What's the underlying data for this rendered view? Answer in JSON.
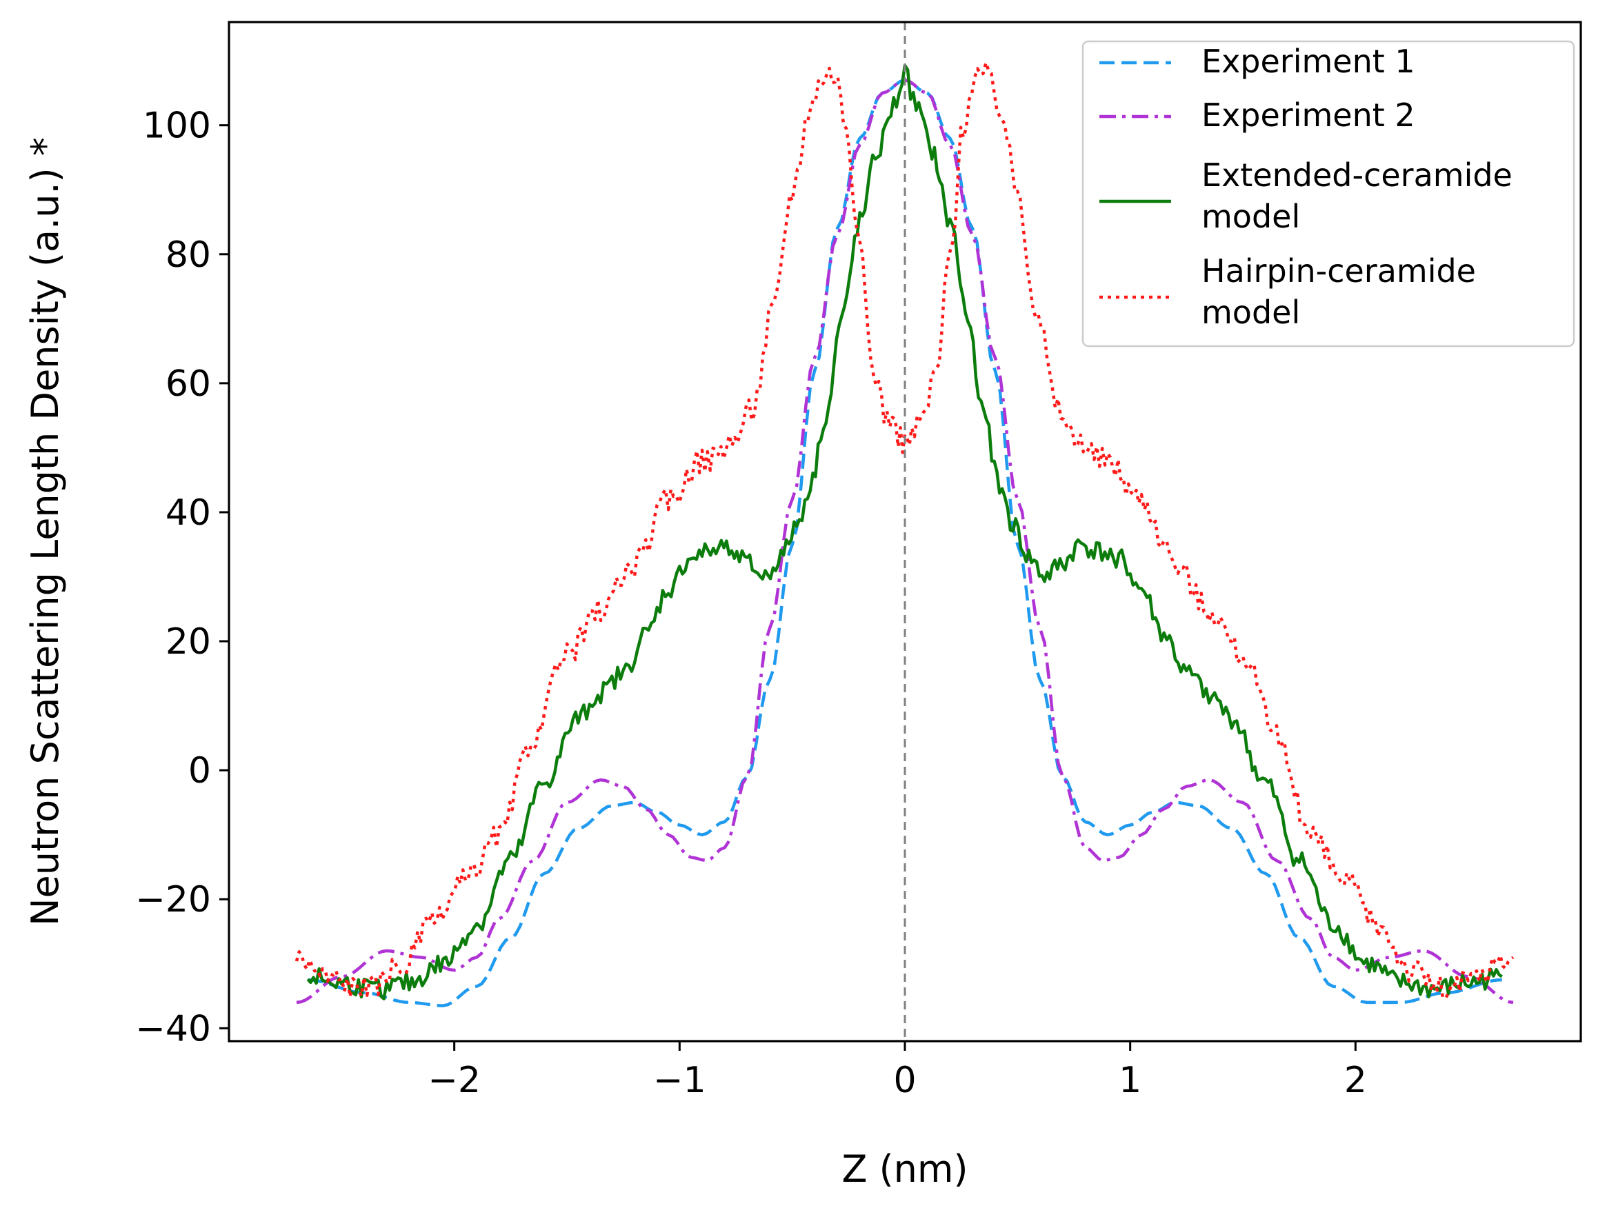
{
  "chart_data": {
    "type": "line",
    "title": "",
    "xlabel": "Z (nm)",
    "ylabel": "Neutron Scattering Length Density (a.u.) *",
    "xlim": [
      -3.0,
      3.0
    ],
    "ylim": [
      -42,
      116
    ],
    "x_ticks": [
      -2,
      -1,
      0,
      1,
      2
    ],
    "x_tick_labels": [
      "−2",
      "−1",
      "0",
      "1",
      "2"
    ],
    "y_ticks": [
      -40,
      -20,
      0,
      20,
      40,
      60,
      80,
      100
    ],
    "y_tick_labels": [
      "−40",
      "−20",
      "0",
      "20",
      "40",
      "60",
      "80",
      "100"
    ],
    "grid": false,
    "reference_line": {
      "x": 0,
      "style": "dashed",
      "color": "#808080"
    },
    "legend": {
      "placement": "top-right",
      "entries": [
        {
          "label_lines": [
            "Experiment 1"
          ]
        },
        {
          "label_lines": [
            "Experiment 2"
          ]
        },
        {
          "label_lines": [
            "Extended-ceramide",
            "model"
          ]
        },
        {
          "label_lines": [
            "Hairpin-ceramide",
            "model"
          ]
        }
      ]
    },
    "series": [
      {
        "name": "Experiment 1",
        "color": "#1f9aef",
        "style": "dashed",
        "x": [
          -2.65,
          -2.4,
          -2.2,
          -2.05,
          -1.9,
          -1.75,
          -1.6,
          -1.45,
          -1.3,
          -1.2,
          -1.1,
          -1.0,
          -0.9,
          -0.8,
          -0.7,
          -0.6,
          -0.5,
          -0.4,
          -0.3,
          -0.2,
          -0.1,
          0.0,
          0.1,
          0.2,
          0.3,
          0.4,
          0.5,
          0.6,
          0.7,
          0.8,
          0.9,
          1.0,
          1.1,
          1.2,
          1.3,
          1.45,
          1.6,
          1.75,
          1.9,
          2.05,
          2.2,
          2.4,
          2.65
        ],
        "values": [
          -32.5,
          -34.5,
          -36,
          -36.5,
          -33.5,
          -26,
          -16,
          -9,
          -5.5,
          -5,
          -6.5,
          -8.5,
          -10,
          -8,
          -1,
          14,
          35,
          62,
          84,
          98,
          105,
          107,
          105,
          98,
          84,
          62,
          35,
          14,
          -1,
          -8,
          -10,
          -8.5,
          -6.5,
          -5,
          -5.5,
          -9,
          -16,
          -26,
          -33.5,
          -36,
          -36,
          -34.5,
          -32.5
        ]
      },
      {
        "name": "Experiment 2",
        "color": "#b033d6",
        "style": "dashdot",
        "x": [
          -2.7,
          -2.5,
          -2.3,
          -2.15,
          -2.0,
          -1.9,
          -1.8,
          -1.65,
          -1.5,
          -1.35,
          -1.25,
          -1.15,
          -1.05,
          -0.95,
          -0.88,
          -0.8,
          -0.7,
          -0.6,
          -0.5,
          -0.4,
          -0.3,
          -0.2,
          -0.1,
          0.0,
          0.1,
          0.2,
          0.3,
          0.4,
          0.5,
          0.6,
          0.7,
          0.8,
          0.88,
          0.95,
          1.05,
          1.15,
          1.25,
          1.35,
          1.5,
          1.65,
          1.8,
          1.9,
          2.0,
          2.15,
          2.3,
          2.5,
          2.7
        ],
        "values": [
          -36,
          -32,
          -28,
          -29,
          -31,
          -29,
          -23,
          -14,
          -5,
          -1.5,
          -2.5,
          -6,
          -10,
          -13.5,
          -14,
          -12,
          -1,
          22,
          42,
          64,
          83,
          97,
          105,
          107,
          105,
          97,
          83,
          64,
          42,
          22,
          -1,
          -12,
          -14,
          -13.5,
          -10,
          -6,
          -2.5,
          -1.5,
          -5,
          -14,
          -23,
          -29,
          -31,
          -29,
          -28,
          -32,
          -36
        ]
      },
      {
        "name": "Extended-ceramide model",
        "color": "#0c7d0c",
        "style": "solid",
        "noise": 1.6,
        "x": [
          -2.65,
          -2.5,
          -2.35,
          -2.2,
          -2.05,
          -1.9,
          -1.75,
          -1.6,
          -1.45,
          -1.35,
          -1.25,
          -1.15,
          -1.05,
          -0.95,
          -0.85,
          -0.78,
          -0.7,
          -0.62,
          -0.55,
          -0.48,
          -0.42,
          -0.35,
          -0.28,
          -0.2,
          -0.12,
          -0.05,
          0.0,
          0.05,
          0.12,
          0.2,
          0.28,
          0.35,
          0.42,
          0.48,
          0.55,
          0.62,
          0.7,
          0.78,
          0.85,
          0.95,
          1.05,
          1.15,
          1.25,
          1.35,
          1.45,
          1.6,
          1.75,
          1.9,
          2.05,
          2.2,
          2.35,
          2.5,
          2.65
        ],
        "values": [
          -32,
          -33,
          -34,
          -33,
          -30,
          -24,
          -14,
          -2,
          8,
          12,
          15,
          21,
          28,
          33,
          34,
          35,
          32,
          30,
          33,
          38,
          44,
          55,
          70,
          85,
          96,
          103,
          108,
          103,
          96,
          85,
          70,
          55,
          44,
          38,
          33,
          30,
          32,
          35,
          34,
          33,
          28,
          21,
          15,
          12,
          8,
          -2,
          -14,
          -24,
          -30,
          -33,
          -34,
          -33,
          -32
        ]
      },
      {
        "name": "Hairpin-ceramide model",
        "color": "#ff1a1a",
        "style": "dotted",
        "noise": 2.0,
        "x": [
          -2.7,
          -2.55,
          -2.4,
          -2.25,
          -2.1,
          -1.95,
          -1.8,
          -1.65,
          -1.5,
          -1.35,
          -1.2,
          -1.05,
          -0.9,
          -0.78,
          -0.68,
          -0.58,
          -0.5,
          -0.42,
          -0.36,
          -0.31,
          -0.26,
          -0.2,
          -0.14,
          -0.08,
          -0.03,
          0.0,
          0.03,
          0.08,
          0.14,
          0.2,
          0.26,
          0.31,
          0.36,
          0.42,
          0.5,
          0.58,
          0.68,
          0.78,
          0.9,
          1.05,
          1.2,
          1.35,
          1.5,
          1.65,
          1.8,
          1.95,
          2.1,
          2.25,
          2.4,
          2.55,
          2.7
        ],
        "values": [
          -29,
          -32,
          -34,
          -31,
          -24,
          -17,
          -10,
          5,
          18,
          25,
          32,
          42,
          48,
          50,
          56,
          72,
          90,
          103,
          108,
          108,
          100,
          80,
          62,
          55,
          52,
          51,
          52,
          55,
          62,
          80,
          100,
          108,
          108,
          103,
          90,
          72,
          56,
          50,
          48,
          42,
          32,
          25,
          18,
          5,
          -10,
          -17,
          -24,
          -31,
          -34,
          -32,
          -29
        ]
      }
    ]
  }
}
